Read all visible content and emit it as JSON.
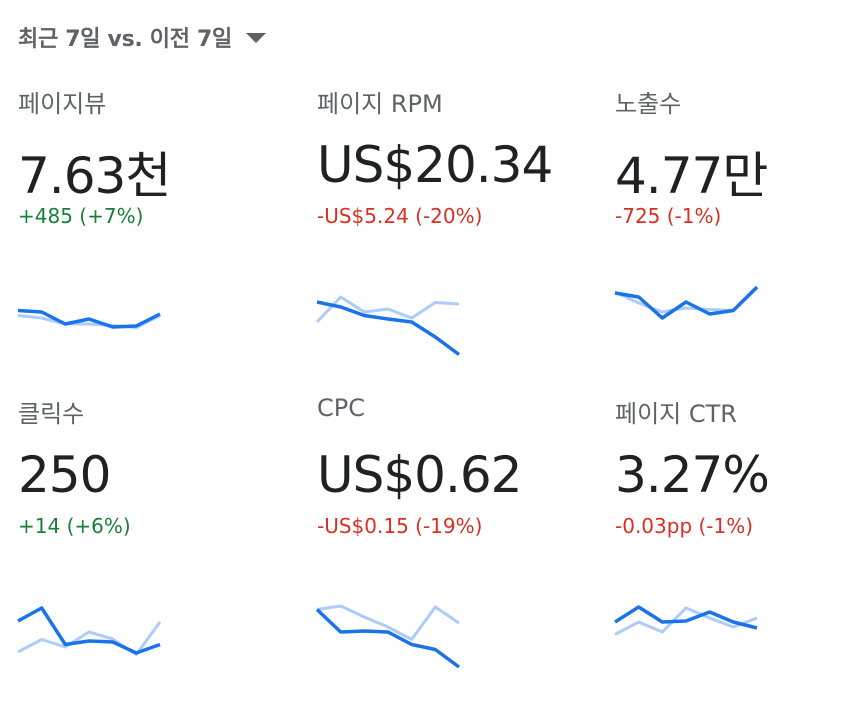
{
  "range_selector": {
    "label": "최근 7일 vs. 이전 7일",
    "icon": "arrow-drop-down-icon"
  },
  "colors": {
    "current_line": "#1a73e8",
    "previous_line": "#aecbfa",
    "positive": "#188038",
    "negative": "#d93025"
  },
  "metrics": [
    {
      "label": "페이지뷰",
      "value": "7.63천",
      "change": "+485 (+7%)",
      "trend": "positive",
      "current": [
        0.57,
        0.6,
        0.84,
        0.74,
        0.9,
        0.88,
        0.64
      ],
      "previous": [
        0.67,
        0.72,
        0.84,
        0.84,
        0.87,
        0.91,
        0.67
      ]
    },
    {
      "label": "페이지 RPM",
      "value": "US$20.34",
      "change": "-US$5.24 (-20%)",
      "trend": "negative",
      "current": [
        0.4,
        0.5,
        0.67,
        0.74,
        0.8,
        1.1,
        1.45
      ],
      "previous": [
        0.8,
        0.3,
        0.6,
        0.54,
        0.72,
        0.41,
        0.44
      ]
    },
    {
      "label": "노출수",
      "value": "4.77만",
      "change": "-725 (-1%)",
      "trend": "negative",
      "current": [
        0.22,
        0.3,
        0.72,
        0.4,
        0.64,
        0.57,
        0.1
      ],
      "previous": [
        0.2,
        0.42,
        0.6,
        0.52,
        0.55,
        0.57,
        0.12
      ]
    },
    {
      "label": "클릭수",
      "value": "250",
      "change": "+14 (+6%)",
      "trend": "positive",
      "current": [
        0.58,
        0.32,
        1.05,
        0.98,
        1.0,
        1.22,
        1.05
      ],
      "previous": [
        1.2,
        0.95,
        1.1,
        0.8,
        0.94,
        1.25,
        0.6
      ]
    },
    {
      "label": "CPC",
      "value": "US$0.62",
      "change": "-US$0.15 (-19%)",
      "trend": "negative",
      "current": [
        0.35,
        0.8,
        0.78,
        0.8,
        1.05,
        1.15,
        1.5
      ],
      "previous": [
        0.35,
        0.28,
        0.5,
        0.7,
        0.95,
        0.3,
        0.62
      ]
    },
    {
      "label": "페이지 CTR",
      "value": "3.27%",
      "change": "-0.03pp (-1%)",
      "trend": "negative",
      "current": [
        0.6,
        0.3,
        0.6,
        0.58,
        0.4,
        0.6,
        0.72
      ],
      "previous": [
        0.85,
        0.6,
        0.8,
        0.32,
        0.52,
        0.7,
        0.52
      ]
    }
  ]
}
